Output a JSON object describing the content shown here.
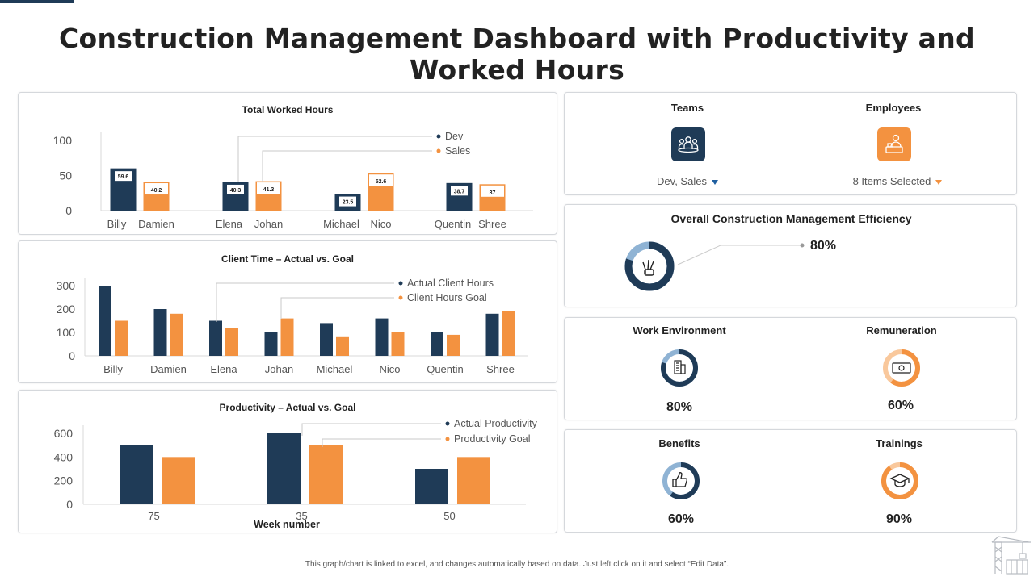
{
  "title": "Construction Management Dashboard with Productivity and Worked Hours",
  "colors": {
    "dark": "#1f3b57",
    "orange": "#f39240",
    "light_blue": "#8fb3d4",
    "light_orange": "#f9c89c"
  },
  "footer_note": "This graph/chart is linked to excel, and changes automatically based on data. Just left click on it and select “Edit Data”.",
  "kpis": {
    "teams": {
      "label": "Teams",
      "selected": "Dev, Sales",
      "icon": "team-icon"
    },
    "employees": {
      "label": "Employees",
      "selected": "8 Items Selected",
      "icon": "employee-icon"
    },
    "efficiency": {
      "label": "Overall Construction Management Efficiency",
      "value": "80%",
      "fraction": 0.8,
      "icon": "victory-hand-icon"
    },
    "work_environment": {
      "label": "Work Environment",
      "value": "80%",
      "fraction": 0.8,
      "icon": "building-icon"
    },
    "remuneration": {
      "label": "Remuneration",
      "value": "60%",
      "fraction": 0.6,
      "icon": "cash-icon"
    },
    "benefits": {
      "label": "Benefits",
      "value": "60%",
      "fraction": 0.6,
      "icon": "thumbs-up-icon"
    },
    "trainings": {
      "label": "Trainings",
      "value": "90%",
      "fraction": 0.9,
      "icon": "graduation-cap-icon"
    }
  },
  "chart_data": [
    {
      "id": "worked",
      "type": "bar",
      "title": "Total Worked Hours",
      "ylim": [
        0,
        100
      ],
      "yticks": [
        0,
        50,
        100
      ],
      "groups": [
        {
          "labels": [
            "Billy",
            "Damien"
          ],
          "values": [
            59.6,
            40.2
          ]
        },
        {
          "labels": [
            "Elena",
            "Johan"
          ],
          "values": [
            40.3,
            41.3
          ]
        },
        {
          "labels": [
            "Michael",
            "Nico"
          ],
          "values": [
            23.5,
            52.6
          ]
        },
        {
          "labels": [
            "Quentin",
            "Shree"
          ],
          "values": [
            38.7,
            37
          ]
        }
      ],
      "series": [
        {
          "name": "Dev",
          "color": "#1f3b57"
        },
        {
          "name": "Sales",
          "color": "#f39240"
        }
      ],
      "legend": "top-right"
    },
    {
      "id": "client",
      "type": "bar",
      "title": "Client Time – Actual vs. Goal",
      "ylim": [
        0,
        300
      ],
      "yticks": [
        0,
        100,
        200,
        300
      ],
      "categories": [
        "Billy",
        "Damien",
        "Elena",
        "Johan",
        "Michael",
        "Nico",
        "Quentin",
        "Shree"
      ],
      "series": [
        {
          "name": "Actual Client Hours",
          "color": "#1f3b57",
          "values": [
            300,
            200,
            150,
            100,
            140,
            160,
            100,
            180
          ]
        },
        {
          "name": "Client Hours Goal",
          "color": "#f39240",
          "values": [
            150,
            180,
            120,
            160,
            80,
            100,
            90,
            190
          ]
        }
      ],
      "legend": "top-right"
    },
    {
      "id": "productivity",
      "type": "bar",
      "title": "Productivity – Actual vs. Goal",
      "xlabel": "Week number",
      "ylim": [
        0,
        600
      ],
      "yticks": [
        0,
        200,
        400,
        600
      ],
      "categories": [
        "75",
        "35",
        "50"
      ],
      "series": [
        {
          "name": "Actual Productivity",
          "color": "#1f3b57",
          "values": [
            500,
            600,
            300
          ]
        },
        {
          "name": "Productivity Goal",
          "color": "#f39240",
          "values": [
            400,
            500,
            400
          ]
        }
      ],
      "legend": "top-right"
    }
  ]
}
